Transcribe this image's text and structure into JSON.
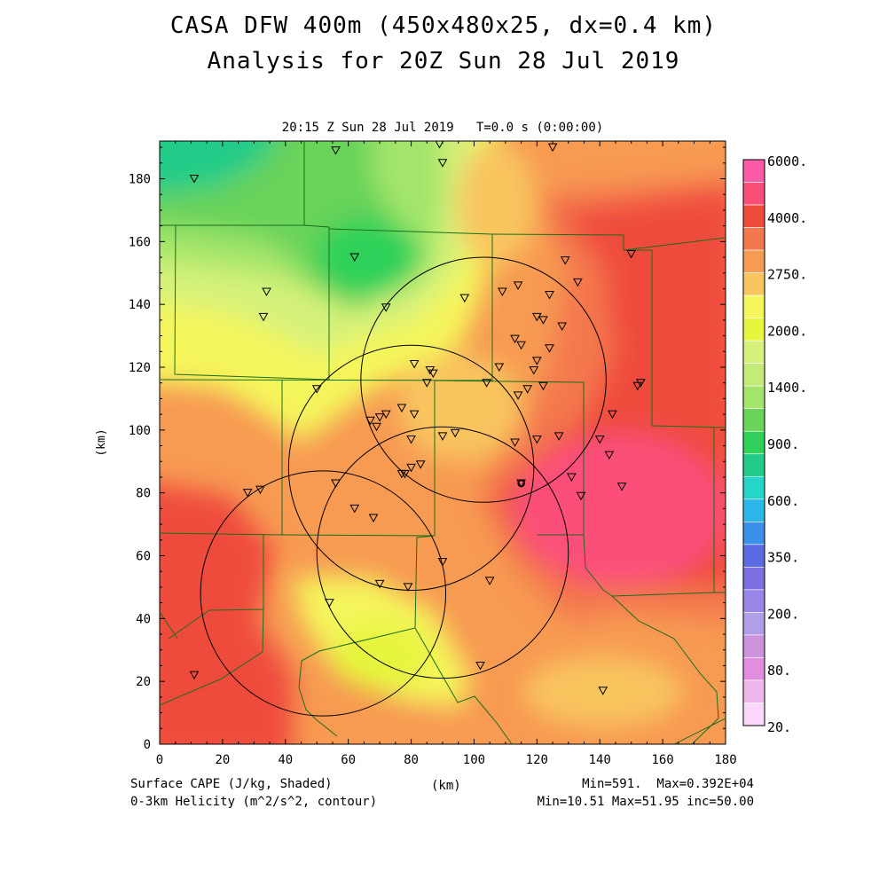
{
  "header": {
    "title": "CASA DFW 400m (450x480x25, dx=0.4 km)",
    "subtitle": "Analysis for 20Z Sun 28 Jul 2019",
    "valid_time": "20:15 Z Sun 28 Jul 2019   T=0.0 s (0:00:00)"
  },
  "map": {
    "x_range_km": [
      0,
      180
    ],
    "y_range_km": [
      0,
      192
    ],
    "x_ticks": [
      "0",
      "20",
      "40",
      "60",
      "80",
      "100",
      "120",
      "140",
      "160",
      "180"
    ],
    "y_ticks": [
      "0",
      "20",
      "40",
      "60",
      "80",
      "100",
      "120",
      "140",
      "160",
      "180"
    ],
    "x_label": "(km)",
    "y_label": "(km)",
    "cape_field_colors": {
      "green_core": "#2fd15a",
      "teal_corner": "#22cc88",
      "light_green": "#a3e56b",
      "yellow_green": "#d6f27a",
      "yellow": "#f5f55c",
      "light_orange": "#f9c55e",
      "orange": "#f79a52",
      "orange_red": "#f4784e",
      "red": "#ef4b3c",
      "pink_max": "#fb4f7a"
    },
    "helicity_circles_km": [
      {
        "center": [
          103,
          116
        ],
        "radius": 39
      },
      {
        "center": [
          80,
          88
        ],
        "radius": 39
      },
      {
        "center": [
          90,
          61
        ],
        "radius": 40
      },
      {
        "center": [
          52,
          48
        ],
        "radius": 39
      }
    ],
    "station_markers_km": [
      [
        11,
        180
      ],
      [
        56,
        189
      ],
      [
        89,
        191
      ],
      [
        90,
        185
      ],
      [
        125,
        190
      ],
      [
        62,
        155
      ],
      [
        34,
        144
      ],
      [
        33,
        136
      ],
      [
        72,
        139
      ],
      [
        97,
        142
      ],
      [
        109,
        144
      ],
      [
        114,
        146
      ],
      [
        124,
        143
      ],
      [
        129,
        154
      ],
      [
        133,
        147
      ],
      [
        120,
        136
      ],
      [
        122,
        135
      ],
      [
        128,
        133
      ],
      [
        113,
        129
      ],
      [
        115,
        127
      ],
      [
        108,
        120
      ],
      [
        119,
        119
      ],
      [
        120,
        122
      ],
      [
        124,
        126
      ],
      [
        122,
        114
      ],
      [
        114,
        111
      ],
      [
        117,
        113
      ],
      [
        81,
        121
      ],
      [
        86,
        119
      ],
      [
        87,
        118
      ],
      [
        85,
        115
      ],
      [
        104,
        115
      ],
      [
        50,
        113
      ],
      [
        67,
        103
      ],
      [
        69,
        101
      ],
      [
        70,
        104
      ],
      [
        72,
        105
      ],
      [
        77,
        107
      ],
      [
        81,
        105
      ],
      [
        80,
        97
      ],
      [
        90,
        98
      ],
      [
        94,
        99
      ],
      [
        113,
        96
      ],
      [
        120,
        97
      ],
      [
        127,
        98
      ],
      [
        140,
        97
      ],
      [
        152,
        114
      ],
      [
        153,
        115
      ],
      [
        144,
        105
      ],
      [
        143,
        92
      ],
      [
        147,
        82
      ],
      [
        131,
        85
      ],
      [
        134,
        79
      ],
      [
        115,
        83
      ],
      [
        28,
        80
      ],
      [
        32,
        81
      ],
      [
        56,
        83
      ],
      [
        62,
        75
      ],
      [
        68,
        72
      ],
      [
        77,
        86
      ],
      [
        78,
        86
      ],
      [
        80,
        88
      ],
      [
        83,
        89
      ],
      [
        90,
        58
      ],
      [
        70,
        51
      ],
      [
        79,
        50
      ],
      [
        105,
        52
      ],
      [
        54,
        45
      ],
      [
        102,
        25
      ],
      [
        11,
        22
      ],
      [
        141,
        17
      ],
      [
        150,
        156
      ]
    ],
    "radar_site_km": [
      115,
      83
    ]
  },
  "colorbar": {
    "labels": [
      "6000.",
      "4000.",
      "2750.",
      "2000.",
      "1400.",
      "900.",
      "600.",
      "350.",
      "200.",
      "80.",
      "20."
    ],
    "colors": [
      "#fd5aa8",
      "#fb4f7a",
      "#ef4b3c",
      "#f4784e",
      "#f79a52",
      "#f9c55e",
      "#f5f55c",
      "#e6f53e",
      "#d6f27a",
      "#c4ea78",
      "#a3e56b",
      "#69d35a",
      "#2fd15a",
      "#22cc88",
      "#25d6c8",
      "#2bb8e8",
      "#3a90ea",
      "#5b6be4",
      "#7d6fe2",
      "#9a86e8",
      "#b09ee8",
      "#cc92dc",
      "#e28ee0",
      "#edb7ee",
      "#fbd7fb"
    ]
  },
  "footer": {
    "left1": "Surface CAPE (J/kg, Shaded)",
    "left2": "0-3km Helicity (m^2/s^2, contour)",
    "center": "(km)",
    "right1": "Min=591.  Max=0.392E+04",
    "right2": "Min=10.51 Max=51.95 inc=50.00"
  }
}
